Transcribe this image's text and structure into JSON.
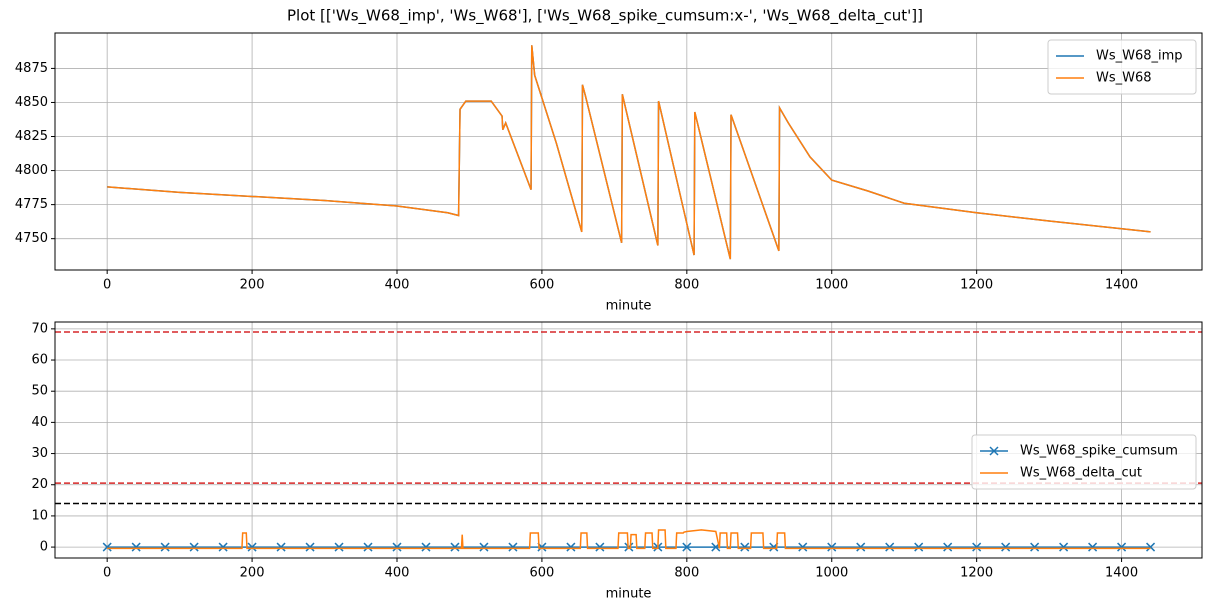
{
  "title": "Plot [['Ws_W68_imp', 'Ws_W68'], ['Ws_W68_spike_cumsum:x-', 'Ws_W68_delta_cut']]",
  "chart_data": [
    {
      "type": "line",
      "xlabel": "minute",
      "grid": true,
      "legend": "upper right",
      "xlim": [
        -72,
        1511
      ],
      "xticks": [
        0,
        200,
        400,
        600,
        800,
        1000,
        1200,
        1400
      ],
      "ylim": [
        4727,
        4901
      ],
      "yticks": [
        4750,
        4775,
        4800,
        4825,
        4850,
        4875
      ],
      "x": [
        0,
        100,
        200,
        300,
        400,
        470,
        485,
        487,
        495,
        530,
        545,
        546,
        550,
        585,
        586,
        590,
        620,
        655,
        656,
        660,
        710,
        711,
        760,
        761,
        810,
        811,
        860,
        861,
        927,
        928,
        940,
        970,
        1000,
        1050,
        1100,
        1200,
        1300,
        1440
      ],
      "series": [
        {
          "name": "Ws_W68_imp",
          "color": "#1f77b4",
          "values": [
            4788,
            4784,
            4781,
            4778,
            4774,
            4769,
            4767,
            4845,
            4851,
            4851,
            4840,
            4830,
            4835,
            4786,
            4892,
            4870,
            4820,
            4755,
            4863,
            4855,
            4747,
            4856,
            4745,
            4851,
            4738,
            4843,
            4735,
            4841,
            4741,
            4846,
            4835,
            4810,
            4793,
            4785,
            4776,
            4769,
            4763,
            4755
          ]
        },
        {
          "name": "Ws_W68",
          "color": "#ff7f0e",
          "values": [
            4788,
            4784,
            4781,
            4778,
            4774,
            4769,
            4767,
            4845,
            4851,
            4851,
            4840,
            4830,
            4835,
            4786,
            4892,
            4870,
            4820,
            4755,
            4863,
            4855,
            4747,
            4856,
            4745,
            4851,
            4738,
            4843,
            4735,
            4841,
            4741,
            4846,
            4835,
            4810,
            4793,
            4785,
            4776,
            4769,
            4763,
            4755
          ]
        }
      ]
    },
    {
      "type": "line",
      "xlabel": "minute",
      "grid": true,
      "legend": "center right",
      "xlim": [
        -72,
        1511
      ],
      "xticks": [
        0,
        200,
        400,
        600,
        800,
        1000,
        1200,
        1400
      ],
      "ylim": [
        -3.5,
        72.2
      ],
      "yticks": [
        0,
        10,
        20,
        30,
        40,
        50,
        60,
        70
      ],
      "hlines": [
        {
          "value": 69,
          "color": "#d62728"
        },
        {
          "value": 20.5,
          "color": "#d62728"
        },
        {
          "value": 14,
          "color": "#000000"
        }
      ],
      "series": [
        {
          "name": "Ws_W68_spike_cumsum",
          "color": "#1f77b4",
          "marker": "x",
          "x": [
            0,
            40,
            80,
            120,
            160,
            200,
            240,
            280,
            320,
            360,
            400,
            440,
            480,
            520,
            560,
            600,
            640,
            680,
            720,
            760,
            800,
            840,
            880,
            920,
            960,
            1000,
            1040,
            1080,
            1120,
            1160,
            1200,
            1240,
            1280,
            1320,
            1360,
            1400,
            1440
          ],
          "values": [
            0,
            0,
            0,
            0,
            0,
            0,
            0,
            0,
            0,
            0,
            0,
            0,
            0,
            0,
            0,
            0,
            0,
            0,
            0,
            0,
            0,
            0,
            0,
            0,
            0,
            0,
            0,
            0,
            0,
            0,
            0,
            0,
            0,
            0,
            0,
            0,
            0
          ]
        },
        {
          "name": "Ws_W68_delta_cut",
          "color": "#ff7f0e",
          "x": [
            0,
            186,
            187,
            192,
            193,
            489,
            490,
            491,
            583,
            584,
            595,
            596,
            653,
            654,
            662,
            663,
            705,
            706,
            718,
            719,
            722,
            723,
            730,
            731,
            742,
            743,
            752,
            753,
            760,
            761,
            770,
            771,
            785,
            786,
            795,
            796,
            800,
            820,
            840,
            845,
            846,
            855,
            856,
            860,
            861,
            870,
            871,
            888,
            889,
            905,
            906,
            924,
            925,
            935,
            936,
            1440
          ],
          "values": [
            -0.4,
            -0.4,
            4.5,
            4.5,
            -0.4,
            -0.4,
            4,
            -0.4,
            -0.4,
            4.5,
            4.5,
            -0.4,
            -0.4,
            4.5,
            4.5,
            -0.4,
            -0.4,
            4.5,
            4.5,
            -0.4,
            -0.4,
            4,
            4,
            -0.4,
            -0.4,
            4.5,
            4.5,
            -0.4,
            -0.4,
            5.5,
            5.5,
            -0.4,
            -0.4,
            4.5,
            4.5,
            4.8,
            5,
            5.5,
            5,
            -0.4,
            4.5,
            4.5,
            -0.4,
            -0.4,
            4.5,
            4.5,
            -0.4,
            -0.4,
            4.5,
            4.5,
            -0.4,
            -0.4,
            4.5,
            4.5,
            -0.4,
            -0.4
          ]
        }
      ]
    }
  ]
}
